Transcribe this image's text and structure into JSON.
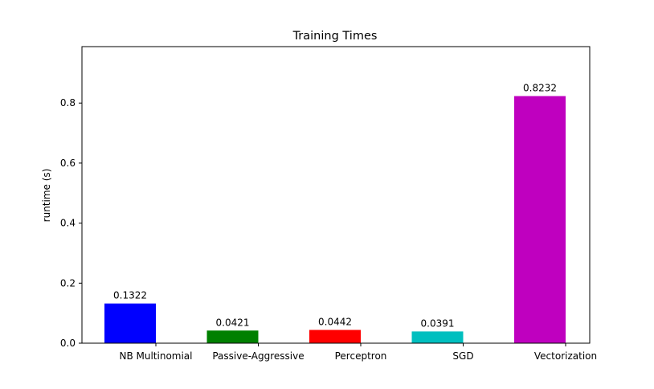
{
  "chart_data": {
    "type": "bar",
    "title": "Training Times",
    "xlabel": "",
    "ylabel": "runtime (s)",
    "ylim": [
      0,
      0.988
    ],
    "yticks": [
      "0.0",
      "0.2",
      "0.4",
      "0.6",
      "0.8"
    ],
    "ytick_values": [
      0.0,
      0.2,
      0.4,
      0.6,
      0.8
    ],
    "categories": [
      "NB Multinomial",
      "Passive-Aggressive",
      "Perceptron",
      "SGD",
      "Vectorization"
    ],
    "values": [
      0.1322,
      0.0421,
      0.0442,
      0.0391,
      0.8232
    ],
    "value_labels": [
      "0.1322",
      "0.0421",
      "0.0442",
      "0.0391",
      "0.8232"
    ],
    "colors": [
      "#0000ff",
      "#008000",
      "#ff0000",
      "#00bfbf",
      "#bf00bf"
    ],
    "grid": false,
    "legend": "none"
  }
}
